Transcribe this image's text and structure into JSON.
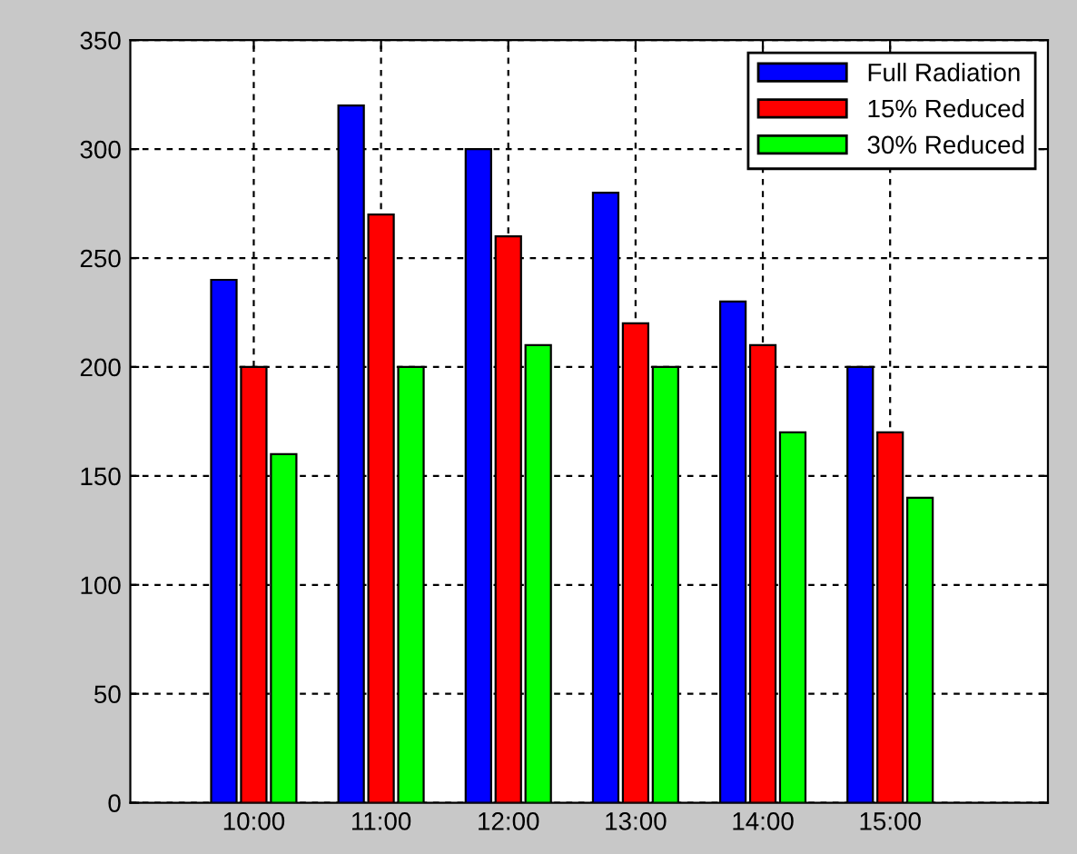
{
  "chart_data": {
    "type": "bar",
    "categories": [
      "10:00",
      "11:00",
      "12:00",
      "13:00",
      "14:00",
      "15:00"
    ],
    "series": [
      {
        "name": "Full Radiation",
        "color": "#0000ff",
        "values": [
          240,
          320,
          300,
          280,
          230,
          200
        ]
      },
      {
        "name": "15% Reduced",
        "color": "#ff0000",
        "values": [
          200,
          270,
          260,
          220,
          210,
          170
        ]
      },
      {
        "name": "30% Reduced",
        "color": "#00ff00",
        "values": [
          160,
          200,
          210,
          200,
          170,
          140
        ]
      }
    ],
    "ylim": [
      0,
      350
    ],
    "yticks": [
      0,
      50,
      100,
      150,
      200,
      250,
      300,
      350
    ],
    "grid": true,
    "legend": "top right"
  }
}
